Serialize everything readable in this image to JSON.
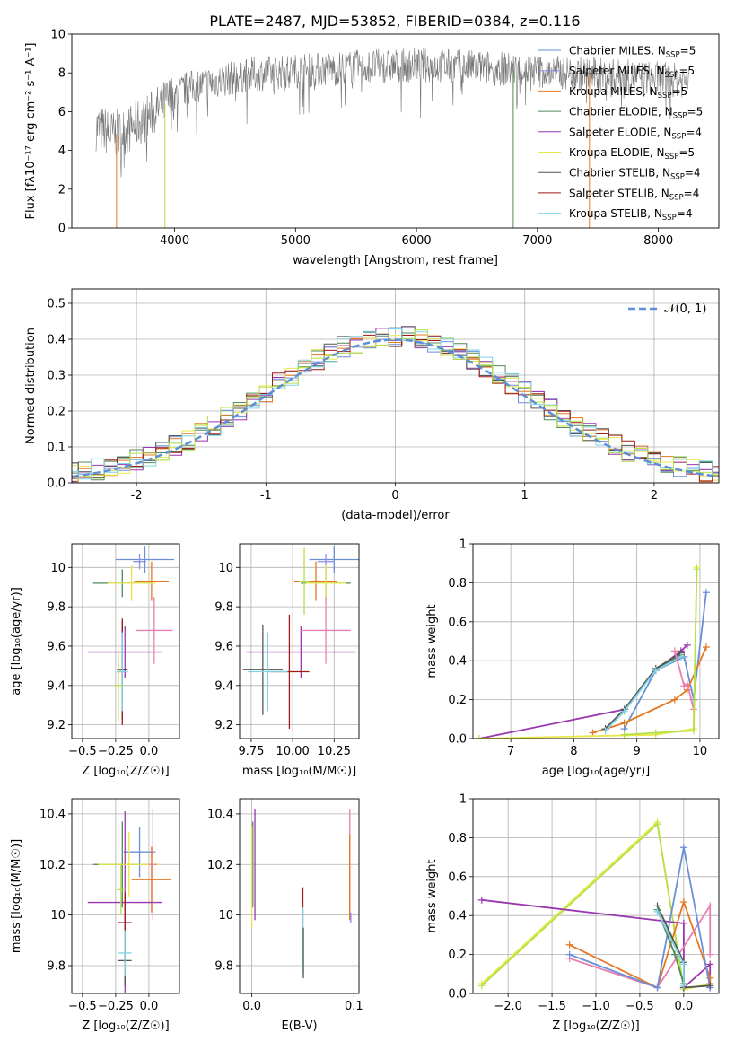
{
  "title": "PLATE=2487, MJD=53852, FIBERID=0384, z=0.116",
  "colors": {
    "Chabrier MILES": "#6a8fd6",
    "Salpeter MILES": "#8e8ee8",
    "Kroupa MILES": "#e57822",
    "Chabrier ELODIE": "#4f8a57",
    "Salpeter ELODIE": "#9a37b0",
    "Kroupa ELODIE": "#e8e84a",
    "Chabrier STELIB": "#555555",
    "Salpeter STELIB": "#a01818",
    "Kroupa STELIB": "#7fd3e6",
    "pink": "#e87fb0",
    "lime": "#b6e04a",
    "gaussian": "#5b8fd6"
  },
  "chart_data": [
    {
      "id": "spectrum",
      "type": "line",
      "xlabel": "wavelength [Angstrom, rest frame]",
      "ylabel": "Flux [fλ10⁻¹⁷ erg cm⁻² s⁻¹ A⁻¹]",
      "xlim": [
        3150,
        8500
      ],
      "ylim": [
        0,
        10
      ],
      "xticks": [
        4000,
        5000,
        6000,
        7000,
        8000
      ],
      "yticks": [
        0,
        2,
        4,
        6,
        8,
        10
      ],
      "legend": [
        "Chabrier MILES, N_SSP=5",
        "Salpeter MILES, N_SSP=5",
        "Kroupa MILES, N_SSP=5",
        "Chabrier ELODIE, N_SSP=5",
        "Salpeter ELODIE, N_SSP=4",
        "Kroupa ELODIE, N_SSP=5",
        "Chabrier STELIB, N_SSP=4",
        "Salpeter STELIB, N_SSP=4",
        "Kroupa STELIB, N_SSP=4"
      ],
      "legend_position": "right",
      "continuum": [
        [
          3350,
          5.2
        ],
        [
          3500,
          4.8
        ],
        [
          3600,
          5.0
        ],
        [
          3800,
          5.8
        ],
        [
          3950,
          6.6
        ],
        [
          4100,
          7.2
        ],
        [
          4300,
          7.5
        ],
        [
          4600,
          7.9
        ],
        [
          5000,
          8.1
        ],
        [
          5500,
          8.3
        ],
        [
          6000,
          8.4
        ],
        [
          6500,
          8.3
        ],
        [
          7000,
          8.1
        ],
        [
          7500,
          7.9
        ],
        [
          8000,
          7.7
        ],
        [
          8250,
          7.6
        ]
      ],
      "data_range": [
        3350,
        8250
      ],
      "noise_amplitude": 0.9,
      "dropouts": [
        3520,
        3920,
        6800,
        7430
      ]
    },
    {
      "id": "residuals",
      "type": "histogram",
      "xlabel": "(data-model)/error",
      "ylabel": "Normed distribution",
      "xlim": [
        -2.5,
        2.5
      ],
      "ylim": [
        0,
        0.54
      ],
      "xticks": [
        -2,
        -1,
        0,
        1,
        2
      ],
      "yticks": [
        0.0,
        0.1,
        0.2,
        0.3,
        0.4,
        0.5
      ],
      "bin_width": 0.1,
      "series_count": 9,
      "gaussian": {
        "label": "𝒩(0, 1)",
        "mean": 0,
        "sigma": 1
      },
      "legend_position": "top-right"
    },
    {
      "id": "age-vs-Z",
      "type": "errorbar",
      "xlabel": "Z [log₁₀(Z/Z☉)]",
      "ylabel": "age  [log₁₀(age/yr)]",
      "xlim": [
        -0.58,
        0.23
      ],
      "ylim": [
        9.13,
        10.12
      ],
      "xticks": [
        -0.5,
        -0.25,
        0.0
      ],
      "xticklabels": [
        "−0.5",
        "−0.25",
        "0.0"
      ],
      "yticks": [
        9.2,
        9.4,
        9.6,
        9.8,
        10.0
      ],
      "points": [
        {
          "c": "Chabrier MILES",
          "x": -0.03,
          "xerr": 0.22,
          "y": 10.04,
          "yerr": 0.07
        },
        {
          "c": "Salpeter MILES",
          "x": -0.07,
          "xerr": 0.05,
          "y": 10.03,
          "yerr": 0.04
        },
        {
          "c": "Kroupa MILES",
          "x": 0.02,
          "xerr": 0.13,
          "y": 9.93,
          "yerr": 0.1
        },
        {
          "c": "Chabrier ELODIE",
          "x": -0.2,
          "xerr": 0.22,
          "y": 9.92,
          "yerr": 0.07
        },
        {
          "c": "Salpeter ELODIE",
          "x": -0.18,
          "xerr": 0.28,
          "y": 9.57,
          "yerr": 0.13
        },
        {
          "c": "Kroupa ELODIE",
          "x": -0.13,
          "xerr": 0.18,
          "y": 9.92,
          "yerr": 0.09
        },
        {
          "c": "Chabrier STELIB",
          "x": -0.2,
          "xerr": 0.04,
          "y": 9.48,
          "yerr": 0.25
        },
        {
          "c": "Salpeter STELIB",
          "x": -0.2,
          "xerr": 0.04,
          "y": 9.47,
          "yerr": 0.27
        },
        {
          "c": "Kroupa STELIB",
          "x": -0.2,
          "xerr": 0.04,
          "y": 9.47,
          "yerr": 0.2
        },
        {
          "c": "pink",
          "x": 0.04,
          "xerr": 0.14,
          "y": 9.68,
          "yerr": 0.17
        },
        {
          "c": "lime",
          "x": -0.23,
          "xerr": 0.03,
          "y": 9.4,
          "yerr": 0.18
        }
      ]
    },
    {
      "id": "age-vs-mass",
      "type": "errorbar",
      "xlabel": "mass [log₁₀(M/M☉)]",
      "ylabel": "",
      "xlim": [
        9.68,
        10.4
      ],
      "ylim": [
        9.13,
        10.12
      ],
      "xticks": [
        9.75,
        10.0,
        10.25
      ],
      "xticklabels": [
        "9.75",
        "10.00",
        "10.25"
      ],
      "yticks": [
        9.2,
        9.4,
        9.6,
        9.8,
        10.0
      ],
      "points": [
        {
          "c": "Chabrier MILES",
          "x": 10.25,
          "xerr": 0.15,
          "y": 10.04,
          "yerr": 0.07
        },
        {
          "c": "Salpeter MILES",
          "x": 10.2,
          "xerr": 0.05,
          "y": 10.03,
          "yerr": 0.04
        },
        {
          "c": "Kroupa MILES",
          "x": 10.14,
          "xerr": 0.13,
          "y": 9.93,
          "yerr": 0.1
        },
        {
          "c": "Chabrier ELODIE",
          "x": 10.2,
          "xerr": 0.15,
          "y": 9.92,
          "yerr": 0.07
        },
        {
          "c": "Salpeter ELODIE",
          "x": 10.05,
          "xerr": 0.33,
          "y": 9.57,
          "yerr": 0.13
        },
        {
          "c": "Kroupa ELODIE",
          "x": 10.2,
          "xerr": 0.12,
          "y": 9.92,
          "yerr": 0.09
        },
        {
          "c": "Chabrier STELIB",
          "x": 9.82,
          "xerr": 0.12,
          "y": 9.48,
          "yerr": 0.23
        },
        {
          "c": "Salpeter STELIB",
          "x": 9.98,
          "xerr": 0.12,
          "y": 9.47,
          "yerr": 0.29
        },
        {
          "c": "Kroupa STELIB",
          "x": 9.85,
          "xerr": 0.12,
          "y": 9.47,
          "yerr": 0.2
        },
        {
          "c": "pink",
          "x": 10.2,
          "xerr": 0.15,
          "y": 9.68,
          "yerr": 0.17
        },
        {
          "c": "lime",
          "x": 10.07,
          "xerr": 0.03,
          "y": 9.93,
          "yerr": 0.17
        }
      ]
    },
    {
      "id": "weight-vs-age",
      "type": "line",
      "xlabel": "age  [log₁₀(age/yr)]",
      "ylabel": "mass weight",
      "xlim": [
        6.4,
        10.3
      ],
      "ylim": [
        0,
        1
      ],
      "xticks": [
        7,
        8,
        9,
        10
      ],
      "yticks": [
        0.0,
        0.2,
        0.4,
        0.6,
        0.8,
        1.0
      ],
      "series": [
        {
          "c": "Chabrier MILES",
          "x": [
            8.8,
            9.3,
            9.75,
            9.9,
            10.1
          ],
          "y": [
            0.05,
            0.35,
            0.42,
            0.2,
            0.75
          ]
        },
        {
          "c": "Kroupa MILES",
          "x": [
            8.3,
            8.8,
            9.6,
            9.8,
            10.1
          ],
          "y": [
            0.03,
            0.08,
            0.2,
            0.25,
            0.47
          ]
        },
        {
          "c": "Salpeter ELODIE",
          "x": [
            6.5,
            8.8,
            9.3,
            9.7,
            9.8
          ],
          "y": [
            0.0,
            0.15,
            0.35,
            0.45,
            0.48
          ]
        },
        {
          "c": "Chabrier ELODIE",
          "x": [
            8.5,
            8.8,
            9.3,
            9.7
          ],
          "y": [
            0.05,
            0.15,
            0.35,
            0.43
          ]
        },
        {
          "c": "Chabrier STELIB",
          "x": [
            8.5,
            8.8,
            9.3,
            9.7
          ],
          "y": [
            0.05,
            0.15,
            0.36,
            0.44
          ]
        },
        {
          "c": "Kroupa STELIB",
          "x": [
            8.5,
            8.8,
            9.3,
            9.7
          ],
          "y": [
            0.04,
            0.14,
            0.35,
            0.42
          ]
        },
        {
          "c": "pink",
          "x": [
            9.6,
            9.75,
            9.8,
            9.9
          ],
          "y": [
            0.45,
            0.27,
            0.28,
            0.15
          ]
        },
        {
          "c": "Kroupa ELODIE",
          "x": [
            6.5,
            9.3,
            9.9,
            9.95
          ],
          "y": [
            0.0,
            0.02,
            0.05,
            0.88
          ]
        },
        {
          "c": "lime",
          "x": [
            8.8,
            9.3,
            9.9,
            9.95
          ],
          "y": [
            0.02,
            0.03,
            0.04,
            0.87
          ]
        }
      ]
    },
    {
      "id": "mass-vs-Z",
      "type": "errorbar",
      "xlabel": "Z [log₁₀(Z/Z☉)]",
      "ylabel": "mass [log₁₀(M/M☉)]",
      "xlim": [
        -0.58,
        0.23
      ],
      "ylim": [
        9.69,
        10.46
      ],
      "xticks": [
        -0.5,
        -0.25,
        0.0
      ],
      "xticklabels": [
        "−0.5",
        "−0.25",
        "0.0"
      ],
      "yticks": [
        9.8,
        10.0,
        10.2,
        10.4
      ],
      "points": [
        {
          "c": "Chabrier MILES",
          "x": -0.07,
          "xerr": 0.12,
          "y": 10.25,
          "yerr": 0.1
        },
        {
          "c": "Kroupa MILES",
          "x": 0.02,
          "xerr": 0.15,
          "y": 10.14,
          "yerr": 0.13
        },
        {
          "c": "Chabrier ELODIE",
          "x": -0.2,
          "xerr": 0.22,
          "y": 10.2,
          "yerr": 0.17
        },
        {
          "c": "Salpeter ELODIE",
          "x": -0.18,
          "xerr": 0.28,
          "y": 10.05,
          "yerr": 0.36
        },
        {
          "c": "Kroupa ELODIE",
          "x": -0.15,
          "xerr": 0.23,
          "y": 10.2,
          "yerr": 0.13
        },
        {
          "c": "Chabrier STELIB",
          "x": -0.18,
          "xerr": 0.05,
          "y": 9.82,
          "yerr": 0.1
        },
        {
          "c": "Salpeter STELIB",
          "x": -0.18,
          "xerr": 0.05,
          "y": 9.97,
          "yerr": 0.12
        },
        {
          "c": "Kroupa STELIB",
          "x": -0.18,
          "xerr": 0.05,
          "y": 9.85,
          "yerr": 0.09
        },
        {
          "c": "pink",
          "x": 0.03,
          "xerr": 0.03,
          "y": 10.2,
          "yerr": 0.22
        },
        {
          "c": "lime",
          "x": -0.21,
          "xerr": 0.03,
          "y": 10.1,
          "yerr": 0.1
        }
      ]
    },
    {
      "id": "mass-vs-EBV",
      "type": "errorbar",
      "xlabel": "E(B-V)",
      "ylabel": "",
      "xlim": [
        -0.012,
        0.105
      ],
      "ylim": [
        9.69,
        10.46
      ],
      "xticks": [
        0.0,
        0.1
      ],
      "xticklabels": [
        "0.0",
        "0.1"
      ],
      "yticks": [
        9.8,
        10.0,
        10.2,
        10.4
      ],
      "points": [
        {
          "c": "Salpeter ELODIE",
          "x": 0.003,
          "xerr": 0,
          "y": 10.2,
          "yerr": 0.22
        },
        {
          "c": "Chabrier ELODIE",
          "x": 0.001,
          "xerr": 0,
          "y": 10.2,
          "yerr": 0.17
        },
        {
          "c": "Kroupa ELODIE",
          "x": 0.0,
          "xerr": 0,
          "y": 10.15,
          "yerr": 0.2
        },
        {
          "c": "Salpeter STELIB",
          "x": 0.05,
          "xerr": 0,
          "y": 10.0,
          "yerr": 0.11
        },
        {
          "c": "Kroupa STELIB",
          "x": 0.05,
          "xerr": 0,
          "y": 9.9,
          "yerr": 0.13
        },
        {
          "c": "Chabrier STELIB",
          "x": 0.0505,
          "xerr": 0,
          "y": 9.85,
          "yerr": 0.1
        },
        {
          "c": "pink",
          "x": 0.096,
          "xerr": 0,
          "y": 10.2,
          "yerr": 0.22
        },
        {
          "c": "Kroupa MILES",
          "x": 0.096,
          "xerr": 0,
          "y": 10.15,
          "yerr": 0.17
        },
        {
          "c": "Salpeter MILES",
          "x": 0.097,
          "xerr": 0,
          "y": 9.99,
          "yerr": 0.02
        }
      ]
    },
    {
      "id": "weight-vs-Z",
      "type": "line",
      "xlabel": "Z [log₁₀(Z/Z☉)]",
      "ylabel": "mass weight",
      "xlim": [
        -2.4,
        0.4
      ],
      "ylim": [
        0,
        1
      ],
      "xticks": [
        -2.0,
        -1.5,
        -1.0,
        -0.5,
        0.0
      ],
      "xticklabels": [
        "−2.0",
        "−1.5",
        "−1.0",
        "−0.5",
        "0.0"
      ],
      "yticks": [
        0.0,
        0.2,
        0.4,
        0.6,
        0.8,
        1.0
      ],
      "series": [
        {
          "c": "Kroupa ELODIE",
          "x": [
            -2.3,
            -0.3,
            0.0,
            0.3
          ],
          "y": [
            0.05,
            0.88,
            0.02,
            0.05
          ]
        },
        {
          "c": "lime",
          "x": [
            -2.3,
            -0.3,
            0.0,
            0.3
          ],
          "y": [
            0.04,
            0.87,
            0.03,
            0.04
          ]
        },
        {
          "c": "Salpeter ELODIE",
          "x": [
            -2.3,
            0.0,
            0.0,
            0.3,
            0.3
          ],
          "y": [
            0.48,
            0.36,
            0.03,
            0.15,
            0.03
          ]
        },
        {
          "c": "Kroupa MILES",
          "x": [
            -1.3,
            -0.3,
            0.0,
            0.3,
            0.3
          ],
          "y": [
            0.25,
            0.03,
            0.47,
            0.08,
            0.05
          ]
        },
        {
          "c": "pink",
          "x": [
            -1.3,
            -0.3,
            0.3,
            0.3
          ],
          "y": [
            0.18,
            0.03,
            0.45,
            0.2
          ]
        },
        {
          "c": "Chabrier MILES",
          "x": [
            -1.3,
            -0.3,
            0.0,
            0.3
          ],
          "y": [
            0.2,
            0.03,
            0.75,
            0.03
          ]
        },
        {
          "c": "Chabrier STELIB",
          "x": [
            -0.3,
            0.0,
            0.0,
            0.3
          ],
          "y": [
            0.45,
            0.16,
            0.03,
            0.04
          ]
        },
        {
          "c": "Chabrier ELODIE",
          "x": [
            -0.3,
            -0.1,
            0.0
          ],
          "y": [
            0.43,
            0.2,
            0.05
          ]
        },
        {
          "c": "Kroupa STELIB",
          "x": [
            -0.3,
            0.0,
            0.0
          ],
          "y": [
            0.42,
            0.15,
            0.04
          ]
        }
      ]
    }
  ]
}
